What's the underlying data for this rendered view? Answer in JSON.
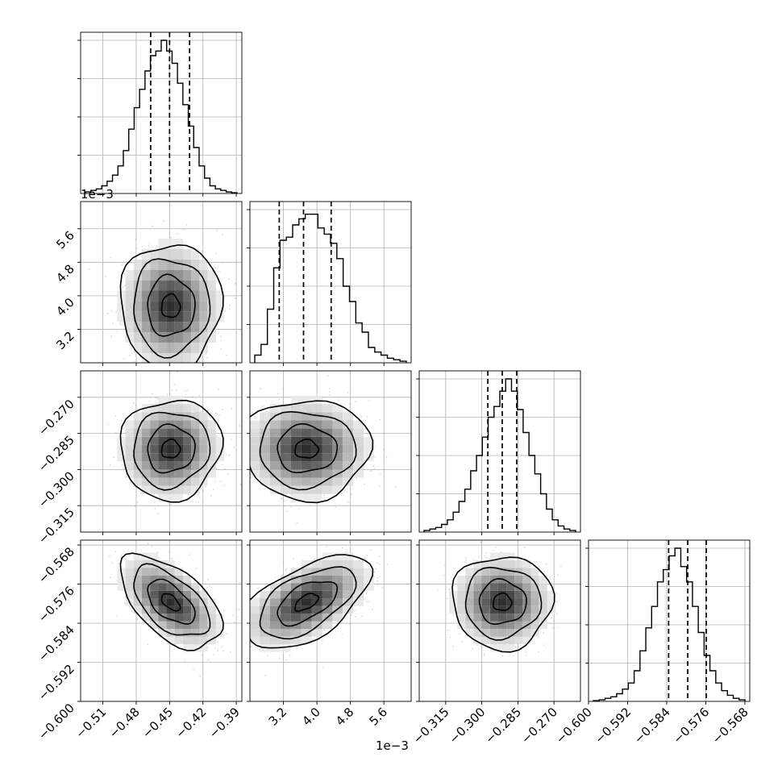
{
  "chart_data": {
    "type": "corner",
    "parameters": 4,
    "scatter_color": "#9e9e9e",
    "line_color": "#000000",
    "grid": true,
    "offset_labels": {
      "p1_y": "1e−3",
      "p1_x": "1e−3"
    },
    "axes": {
      "p0": {
        "range": [
          -0.53,
          -0.385
        ],
        "ticks": [
          -0.51,
          -0.48,
          -0.45,
          -0.42,
          -0.39
        ],
        "tick_labels": [
          "−0.51",
          "−0.48",
          "−0.45",
          "−0.42",
          "−0.39"
        ]
      },
      "p1": {
        "range": [
          2.4,
          6.25
        ],
        "ticks": [
          3.2,
          4.0,
          4.8,
          5.6
        ],
        "tick_labels": [
          "3.2",
          "4.0",
          "4.8",
          "5.6"
        ],
        "scale": "1e-3"
      },
      "p2": {
        "range": [
          -0.326,
          -0.259
        ],
        "ticks": [
          -0.315,
          -0.3,
          -0.285,
          -0.27
        ],
        "tick_labels": [
          "−0.315",
          "−0.300",
          "−0.285",
          "−0.270"
        ]
      },
      "p3": {
        "range": [
          -0.6,
          -0.567
        ],
        "ticks": [
          -0.6,
          -0.592,
          -0.584,
          -0.576,
          -0.568
        ],
        "tick_labels": [
          "−0.600",
          "−0.592",
          "−0.584",
          "−0.576",
          "−0.568"
        ]
      }
    },
    "marginals": [
      {
        "param": "p0",
        "quantiles": [
          -0.467,
          -0.45,
          -0.432
        ],
        "hist": [
          0.01,
          0.02,
          0.03,
          0.05,
          0.08,
          0.12,
          0.18,
          0.28,
          0.42,
          0.56,
          0.68,
          0.8,
          0.9,
          0.93,
          1.0,
          0.93,
          0.85,
          0.72,
          0.58,
          0.44,
          0.3,
          0.18,
          0.1,
          0.05,
          0.03,
          0.02,
          0.01,
          0.005
        ]
      },
      {
        "param": "p1",
        "quantiles": [
          3.1,
          3.68,
          4.34
        ],
        "hist": [
          0.05,
          0.12,
          0.35,
          0.62,
          0.8,
          0.82,
          0.9,
          0.94,
          0.97,
          0.97,
          0.88,
          0.84,
          0.78,
          0.68,
          0.5,
          0.4,
          0.26,
          0.2,
          0.1,
          0.07,
          0.05,
          0.03,
          0.02,
          0.01
        ]
      },
      {
        "param": "p2",
        "quantiles": [
          -0.2975,
          -0.2915,
          -0.2855
        ],
        "hist": [
          0.01,
          0.02,
          0.03,
          0.05,
          0.08,
          0.13,
          0.2,
          0.28,
          0.4,
          0.5,
          0.62,
          0.75,
          0.82,
          0.92,
          1.0,
          0.92,
          0.8,
          0.65,
          0.5,
          0.38,
          0.25,
          0.15,
          0.08,
          0.04,
          0.02,
          0.01
        ]
      },
      {
        "param": "p3",
        "quantiles": [
          -0.5836,
          -0.5797,
          -0.5759
        ],
        "hist": [
          0.005,
          0.01,
          0.02,
          0.03,
          0.05,
          0.08,
          0.12,
          0.2,
          0.33,
          0.48,
          0.62,
          0.78,
          0.86,
          0.95,
          1.0,
          0.88,
          0.78,
          0.62,
          0.45,
          0.3,
          0.2,
          0.12,
          0.07,
          0.04,
          0.02,
          0.01
        ]
      }
    ],
    "pairs": [
      {
        "x": "p0",
        "y": "p1",
        "mean": [
          -0.449,
          3.75
        ],
        "sd": [
          0.0185,
          0.62
        ],
        "rho": 0.0
      },
      {
        "x": "p0",
        "y": "p2",
        "mean": [
          -0.449,
          -0.2915
        ],
        "sd": [
          0.0185,
          0.0085
        ],
        "rho": 0.05
      },
      {
        "x": "p1",
        "y": "p2",
        "mean": [
          3.75,
          -0.2915
        ],
        "sd": [
          0.62,
          0.0085
        ],
        "rho": 0.0
      },
      {
        "x": "p0",
        "y": "p3",
        "mean": [
          -0.449,
          -0.5797
        ],
        "sd": [
          0.0185,
          0.0039
        ],
        "rho": -0.55
      },
      {
        "x": "p1",
        "y": "p3",
        "mean": [
          3.75,
          -0.5797
        ],
        "sd": [
          0.62,
          0.0039
        ],
        "rho": 0.55
      },
      {
        "x": "p2",
        "y": "p3",
        "mean": [
          -0.2915,
          -0.5797
        ],
        "sd": [
          0.0085,
          0.0039
        ],
        "rho": 0.0
      }
    ]
  }
}
